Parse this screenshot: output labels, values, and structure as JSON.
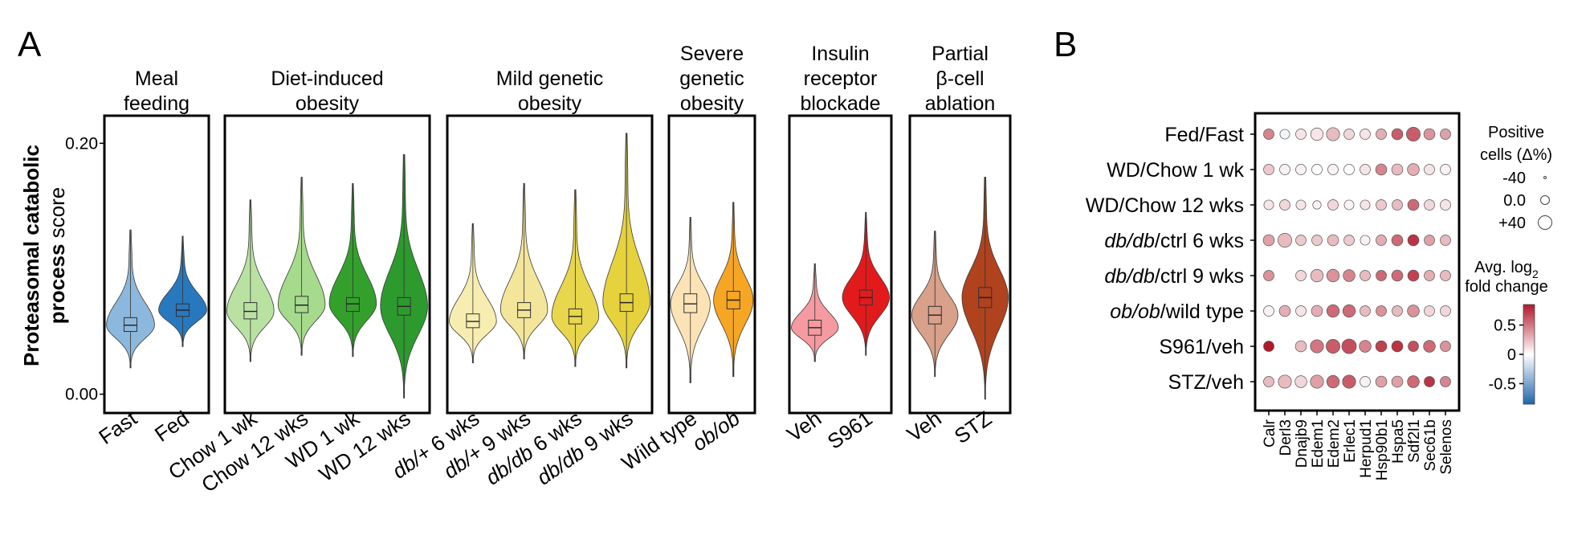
{
  "panel_a": {
    "label": "A",
    "ylabel_bold": "Proteasomal catabolic",
    "ylabel_line2_bold": "process",
    "ylabel_line2_plain": "score",
    "groups": [
      {
        "title": [
          "Meal",
          "feeding"
        ],
        "violins": [
          {
            "label": "Fast",
            "italic": false,
            "color": "#8bb8dc",
            "median": 0.055,
            "q1": 0.05,
            "q3": 0.061,
            "min": 0.021,
            "max": 0.131,
            "wmax": 0.042
          },
          {
            "label": "Fed",
            "italic": false,
            "color": "#2878be",
            "median": 0.067,
            "q1": 0.062,
            "q3": 0.072,
            "min": 0.038,
            "max": 0.126,
            "wmax": 0.038
          }
        ]
      },
      {
        "title": [
          "Diet-induced",
          "obesity"
        ],
        "violins": [
          {
            "label": "Chow 1 wk",
            "italic": false,
            "color": "#b9e2a2",
            "median": 0.066,
            "q1": 0.06,
            "q3": 0.073,
            "min": 0.026,
            "max": 0.155,
            "wmax": 0.04
          },
          {
            "label": "Chow 12 wks",
            "italic": false,
            "color": "#a6da8c",
            "median": 0.071,
            "q1": 0.065,
            "q3": 0.078,
            "min": 0.031,
            "max": 0.173,
            "wmax": 0.042
          },
          {
            "label": "WD 1 wk",
            "italic": false,
            "color": "#33a02c",
            "median": 0.072,
            "q1": 0.066,
            "q3": 0.077,
            "min": 0.03,
            "max": 0.168,
            "wmax": 0.045
          },
          {
            "label": "WD 12 wks",
            "italic": false,
            "color": "#2d9a2d",
            "median": 0.07,
            "q1": 0.063,
            "q3": 0.077,
            "min": -0.003,
            "max": 0.191,
            "wmax": 0.044
          }
        ]
      },
      {
        "title": [
          "Mild genetic",
          "obesity"
        ],
        "violins": [
          {
            "label": "db/+ 6 wks",
            "italic": false,
            "italic_part": "db/+",
            "rest": " 6 wks",
            "color": "#f7edb0",
            "median": 0.058,
            "q1": 0.053,
            "q3": 0.064,
            "min": 0.025,
            "max": 0.136,
            "wmax": 0.038
          },
          {
            "label": "db/+ 9 wks",
            "italic": false,
            "italic_part": "db/+",
            "rest": " 9 wks",
            "color": "#f3e59a",
            "median": 0.067,
            "q1": 0.061,
            "q3": 0.073,
            "min": 0.028,
            "max": 0.168,
            "wmax": 0.042
          },
          {
            "label": "db/db 6 wks",
            "italic": false,
            "italic_part": "db/db",
            "rest": " 6 wks",
            "color": "#e8d64d",
            "median": 0.062,
            "q1": 0.056,
            "q3": 0.068,
            "min": 0.022,
            "max": 0.163,
            "wmax": 0.042
          },
          {
            "label": "db/db 9 wks",
            "italic": false,
            "italic_part": "db/db",
            "rest": " 9 wks",
            "color": "#e6d23c",
            "median": 0.073,
            "q1": 0.066,
            "q3": 0.08,
            "min": 0.021,
            "max": 0.208,
            "wmax": 0.042
          }
        ]
      },
      {
        "title": [
          "Severe",
          "genetic",
          "obesity"
        ],
        "violins": [
          {
            "label": "Wild type",
            "italic": false,
            "color": "#fce3b6",
            "median": 0.072,
            "q1": 0.065,
            "q3": 0.08,
            "min": 0.009,
            "max": 0.141,
            "wmax": 0.042
          },
          {
            "label": "ob/ob",
            "italic": true,
            "color": "#f6a623",
            "median": 0.075,
            "q1": 0.068,
            "q3": 0.082,
            "min": 0.014,
            "max": 0.153,
            "wmax": 0.042
          }
        ]
      },
      {
        "title": [
          "Insulin",
          "receptor",
          "blockade"
        ],
        "violins": [
          {
            "label": "Veh",
            "italic": false,
            "color": "#f59aa0",
            "median": 0.053,
            "q1": 0.047,
            "q3": 0.059,
            "min": 0.026,
            "max": 0.104,
            "wmax": 0.038
          },
          {
            "label": "S961",
            "italic": false,
            "color": "#e31a1c",
            "median": 0.077,
            "q1": 0.071,
            "q3": 0.083,
            "min": 0.031,
            "max": 0.145,
            "wmax": 0.042
          }
        ]
      },
      {
        "title": [
          "Partial",
          "β-cell",
          "ablation"
        ],
        "violins": [
          {
            "label": "Veh",
            "italic": false,
            "color": "#d9a08a",
            "median": 0.063,
            "q1": 0.056,
            "q3": 0.07,
            "min": 0.014,
            "max": 0.13,
            "wmax": 0.04
          },
          {
            "label": "STZ",
            "italic": false,
            "color": "#b0421e",
            "median": 0.077,
            "q1": 0.069,
            "q3": 0.085,
            "min": -0.004,
            "max": 0.173,
            "wmax": 0.042
          }
        ]
      }
    ],
    "y_ticks": [
      0.0,
      0.2
    ],
    "y_tick_labels": [
      "0.00",
      "0.20"
    ],
    "y_range": [
      -0.015,
      0.222
    ]
  },
  "panel_b": {
    "label": "B",
    "rows": [
      {
        "label": "Fed/Fast",
        "italic": "",
        "rest": "Fed/Fast"
      },
      {
        "label": "WD/Chow 1 wk",
        "italic": "",
        "rest": "WD/Chow 1 wk"
      },
      {
        "label": "WD/Chow 12 wks",
        "italic": "",
        "rest": "WD/Chow 12 wks"
      },
      {
        "label": "db/db/ctrl 6 wks",
        "italic": "db/db",
        "rest": "/ctrl 6 wks"
      },
      {
        "label": "db/db/ctrl 9 wks",
        "italic": "db/db",
        "rest": "/ctrl 9 wks"
      },
      {
        "label": "ob/ob/wild type",
        "italic": "ob/ob",
        "rest": "/wild type"
      },
      {
        "label": "S961/veh",
        "italic": "",
        "rest": "S961/veh"
      },
      {
        "label": "STZ/veh",
        "italic": "",
        "rest": "STZ/veh"
      }
    ],
    "genes": [
      "Calr",
      "Derl3",
      "Dnajb9",
      "Edem1",
      "Edem2",
      "Erlec1",
      "Herpud1",
      "Hsp90b1",
      "Hspa5",
      "Sdf2l1",
      "Sec61b",
      "Selenos"
    ],
    "size_legend_title": [
      "Positive",
      "cells (Δ%)"
    ],
    "size_legend": [
      {
        "label": "-40",
        "value": -40
      },
      {
        "label": "0.0",
        "value": 0
      },
      {
        "label": "+40",
        "value": 40
      }
    ],
    "color_legend_title": [
      "Avg. log",
      "2",
      "fold change"
    ],
    "color_ticks": [
      {
        "label": "0.5",
        "value": 0.5
      },
      {
        "label": "0",
        "value": 0
      },
      {
        "label": "-0.5",
        "value": -0.5
      }
    ],
    "color_range": [
      -0.85,
      0.85
    ],
    "colors": {
      "high": "#b2182b",
      "mid": "#ffffff",
      "low": "#2166ac"
    }
  },
  "chart_data": [
    {
      "type": "violin",
      "ylabel": "Proteasomal catabolic process score",
      "ylim": [
        -0.015,
        0.222
      ],
      "categories": [
        "Fast",
        "Fed",
        "Chow 1 wk",
        "Chow 12 wks",
        "WD 1 wk",
        "WD 12 wks",
        "db/+ 6 wks",
        "db/+ 9 wks",
        "db/db 6 wks",
        "db/db 9 wks",
        "Wild type",
        "ob/ob",
        "Veh",
        "S961",
        "Veh",
        "STZ"
      ],
      "medians": [
        0.055,
        0.067,
        0.066,
        0.071,
        0.072,
        0.07,
        0.058,
        0.067,
        0.062,
        0.073,
        0.072,
        0.075,
        0.053,
        0.077,
        0.063,
        0.077
      ]
    },
    {
      "type": "dot",
      "x": [
        "Calr",
        "Derl3",
        "Dnajb9",
        "Edem1",
        "Edem2",
        "Erlec1",
        "Herpud1",
        "Hsp90b1",
        "Hspa5",
        "Sdf2l1",
        "Sec61b",
        "Selenos"
      ],
      "y": [
        "Fed/Fast",
        "WD/Chow 1 wk",
        "WD/Chow 12 wks",
        "db/db/ctrl 6 wks",
        "db/db/ctrl 9 wks",
        "ob/ob/wild type",
        "S961/veh",
        "STZ/veh"
      ],
      "size_label": "Positive cells (Δ%)",
      "color_label": "Avg. log2 fold change",
      "values": [
        {
          "fc": [
            0.45,
            -0.05,
            0.1,
            0.1,
            0.25,
            0.15,
            0.1,
            0.3,
            0.6,
            0.6,
            0.4,
            0.35
          ],
          "pct": [
            0,
            -5,
            0,
            15,
            20,
            0,
            0,
            0,
            5,
            25,
            5,
            0
          ]
        },
        {
          "fc": [
            0.2,
            0.05,
            0.05,
            0.0,
            0.05,
            0.0,
            0.1,
            0.45,
            0.25,
            0.3,
            0.1,
            0.05
          ],
          "pct": [
            0,
            0,
            0,
            0,
            0,
            0,
            0,
            5,
            5,
            10,
            0,
            0
          ]
        },
        {
          "fc": [
            0.1,
            0.15,
            0.1,
            0.05,
            0.15,
            0.05,
            0.1,
            0.2,
            0.25,
            0.55,
            0.15,
            0.1
          ],
          "pct": [
            -5,
            0,
            -5,
            -15,
            0,
            -5,
            -5,
            0,
            0,
            5,
            0,
            0
          ]
        },
        {
          "fc": [
            0.35,
            0.25,
            0.2,
            0.2,
            0.25,
            0.2,
            0.05,
            0.3,
            0.55,
            0.75,
            0.35,
            0.25
          ],
          "pct": [
            5,
            25,
            0,
            0,
            5,
            0,
            -5,
            0,
            5,
            5,
            0,
            0
          ]
        },
        {
          "fc": [
            0.4,
            null,
            0.15,
            0.25,
            0.4,
            0.45,
            0.25,
            0.55,
            0.55,
            0.7,
            0.3,
            0.25
          ],
          "pct": [
            0,
            null,
            0,
            15,
            15,
            10,
            0,
            0,
            5,
            5,
            0,
            0
          ]
        },
        {
          "fc": [
            0.05,
            0.3,
            0.1,
            0.3,
            0.55,
            0.55,
            0.25,
            0.4,
            0.25,
            0.4,
            0.15,
            0.15
          ],
          "pct": [
            0,
            5,
            0,
            5,
            15,
            15,
            0,
            0,
            0,
            10,
            0,
            0
          ]
        },
        {
          "fc": [
            0.85,
            null,
            0.25,
            0.5,
            0.6,
            0.65,
            0.45,
            0.7,
            0.75,
            0.65,
            0.55,
            0.4
          ],
          "pct": [
            0,
            null,
            5,
            20,
            25,
            30,
            10,
            5,
            5,
            0,
            10,
            0
          ]
        },
        {
          "fc": [
            0.25,
            0.25,
            0.15,
            0.35,
            0.55,
            0.6,
            0.05,
            0.35,
            0.35,
            0.55,
            0.75,
            0.45
          ],
          "pct": [
            0,
            20,
            10,
            20,
            15,
            20,
            0,
            5,
            5,
            10,
            0,
            0
          ]
        }
      ]
    }
  ]
}
